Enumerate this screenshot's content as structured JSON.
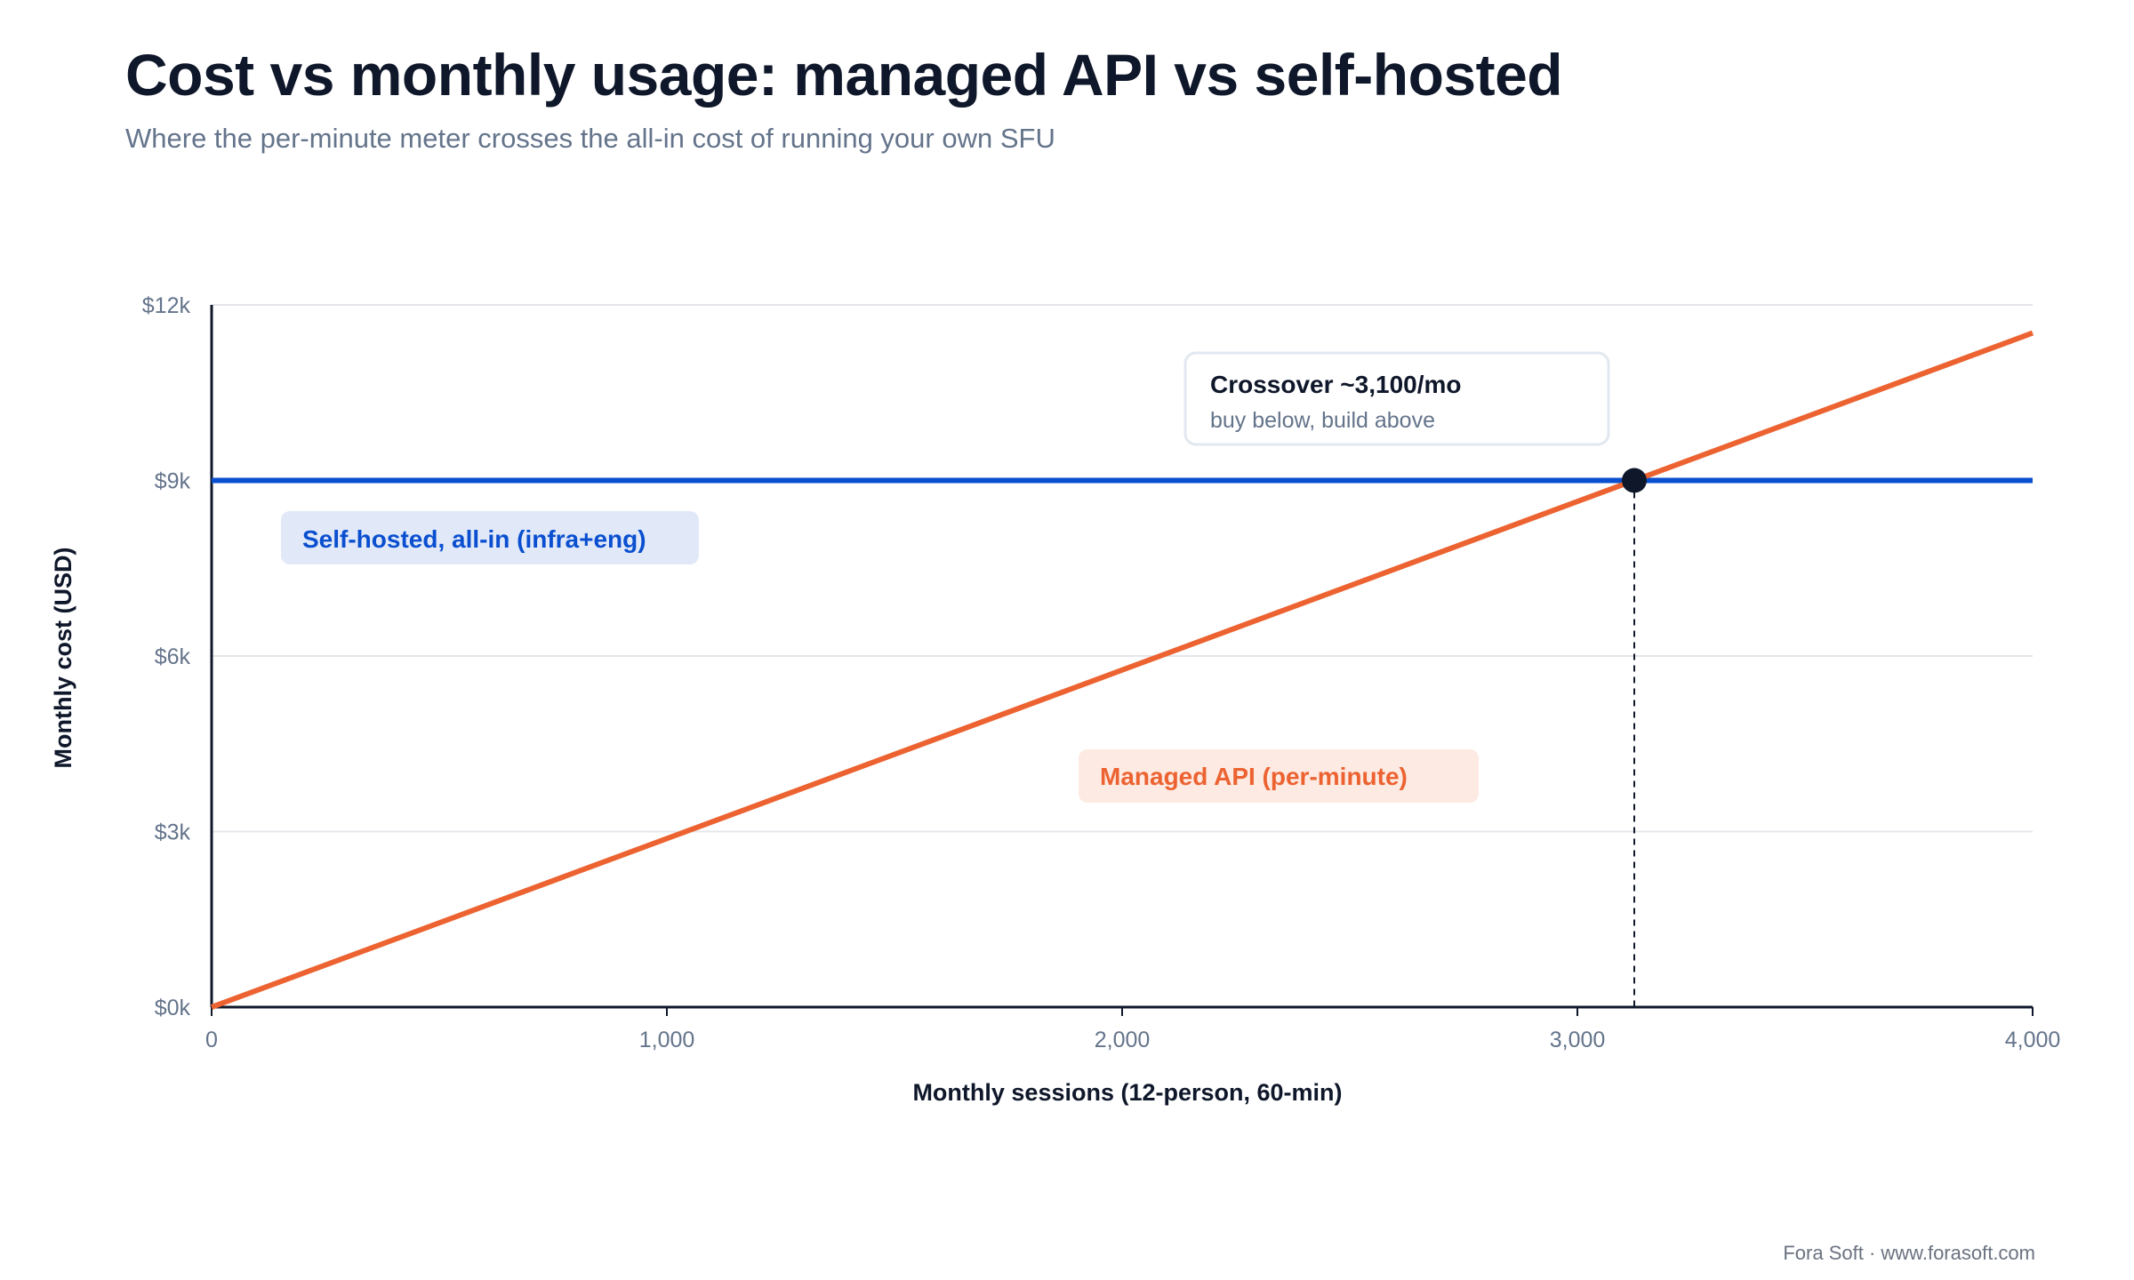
{
  "title": "Cost vs monthly usage: managed API vs self-hosted",
  "subtitle": "Where the per-minute meter crosses the all-in cost of running your own SFU",
  "footer": "Fora Soft · www.forasoft.com",
  "colors": {
    "self_hosted": "#0a4fcf",
    "managed": "#ec6331",
    "axis": "#0f172a",
    "grid": "#e5e7eb",
    "tick_text": "#64748b",
    "self_hosted_label_bg": "#e1e9f9",
    "managed_label_bg": "#fdeae3"
  },
  "chart_data": {
    "type": "line",
    "xlabel": "Monthly sessions (12-person, 60-min)",
    "ylabel": "Monthly cost (USD)",
    "xlim": [
      0,
      4000
    ],
    "ylim": [
      0,
      12000
    ],
    "x_ticks": [
      0,
      1000,
      2000,
      3000,
      4000
    ],
    "x_tick_labels": [
      "0",
      "1,000",
      "2,000",
      "3,000",
      "4,000"
    ],
    "y_ticks": [
      0,
      3000,
      6000,
      9000,
      12000
    ],
    "y_tick_labels": [
      "$0k",
      "$3k",
      "$6k",
      "$9k",
      "$12k"
    ],
    "grid": "horizontal",
    "series": [
      {
        "name": "Self-hosted, all-in (infra+eng)",
        "color": "#0a4fcf",
        "x": [
          0,
          4000
        ],
        "y": [
          9000,
          9000
        ]
      },
      {
        "name": "Managed API (per-minute)",
        "color": "#ec6331",
        "x": [
          0,
          4000
        ],
        "y": [
          0,
          11520
        ]
      }
    ],
    "crossover": {
      "x": 3125,
      "y": 9000,
      "label": "Crossover ~3,100/mo",
      "sublabel": "buy below, build above"
    }
  }
}
